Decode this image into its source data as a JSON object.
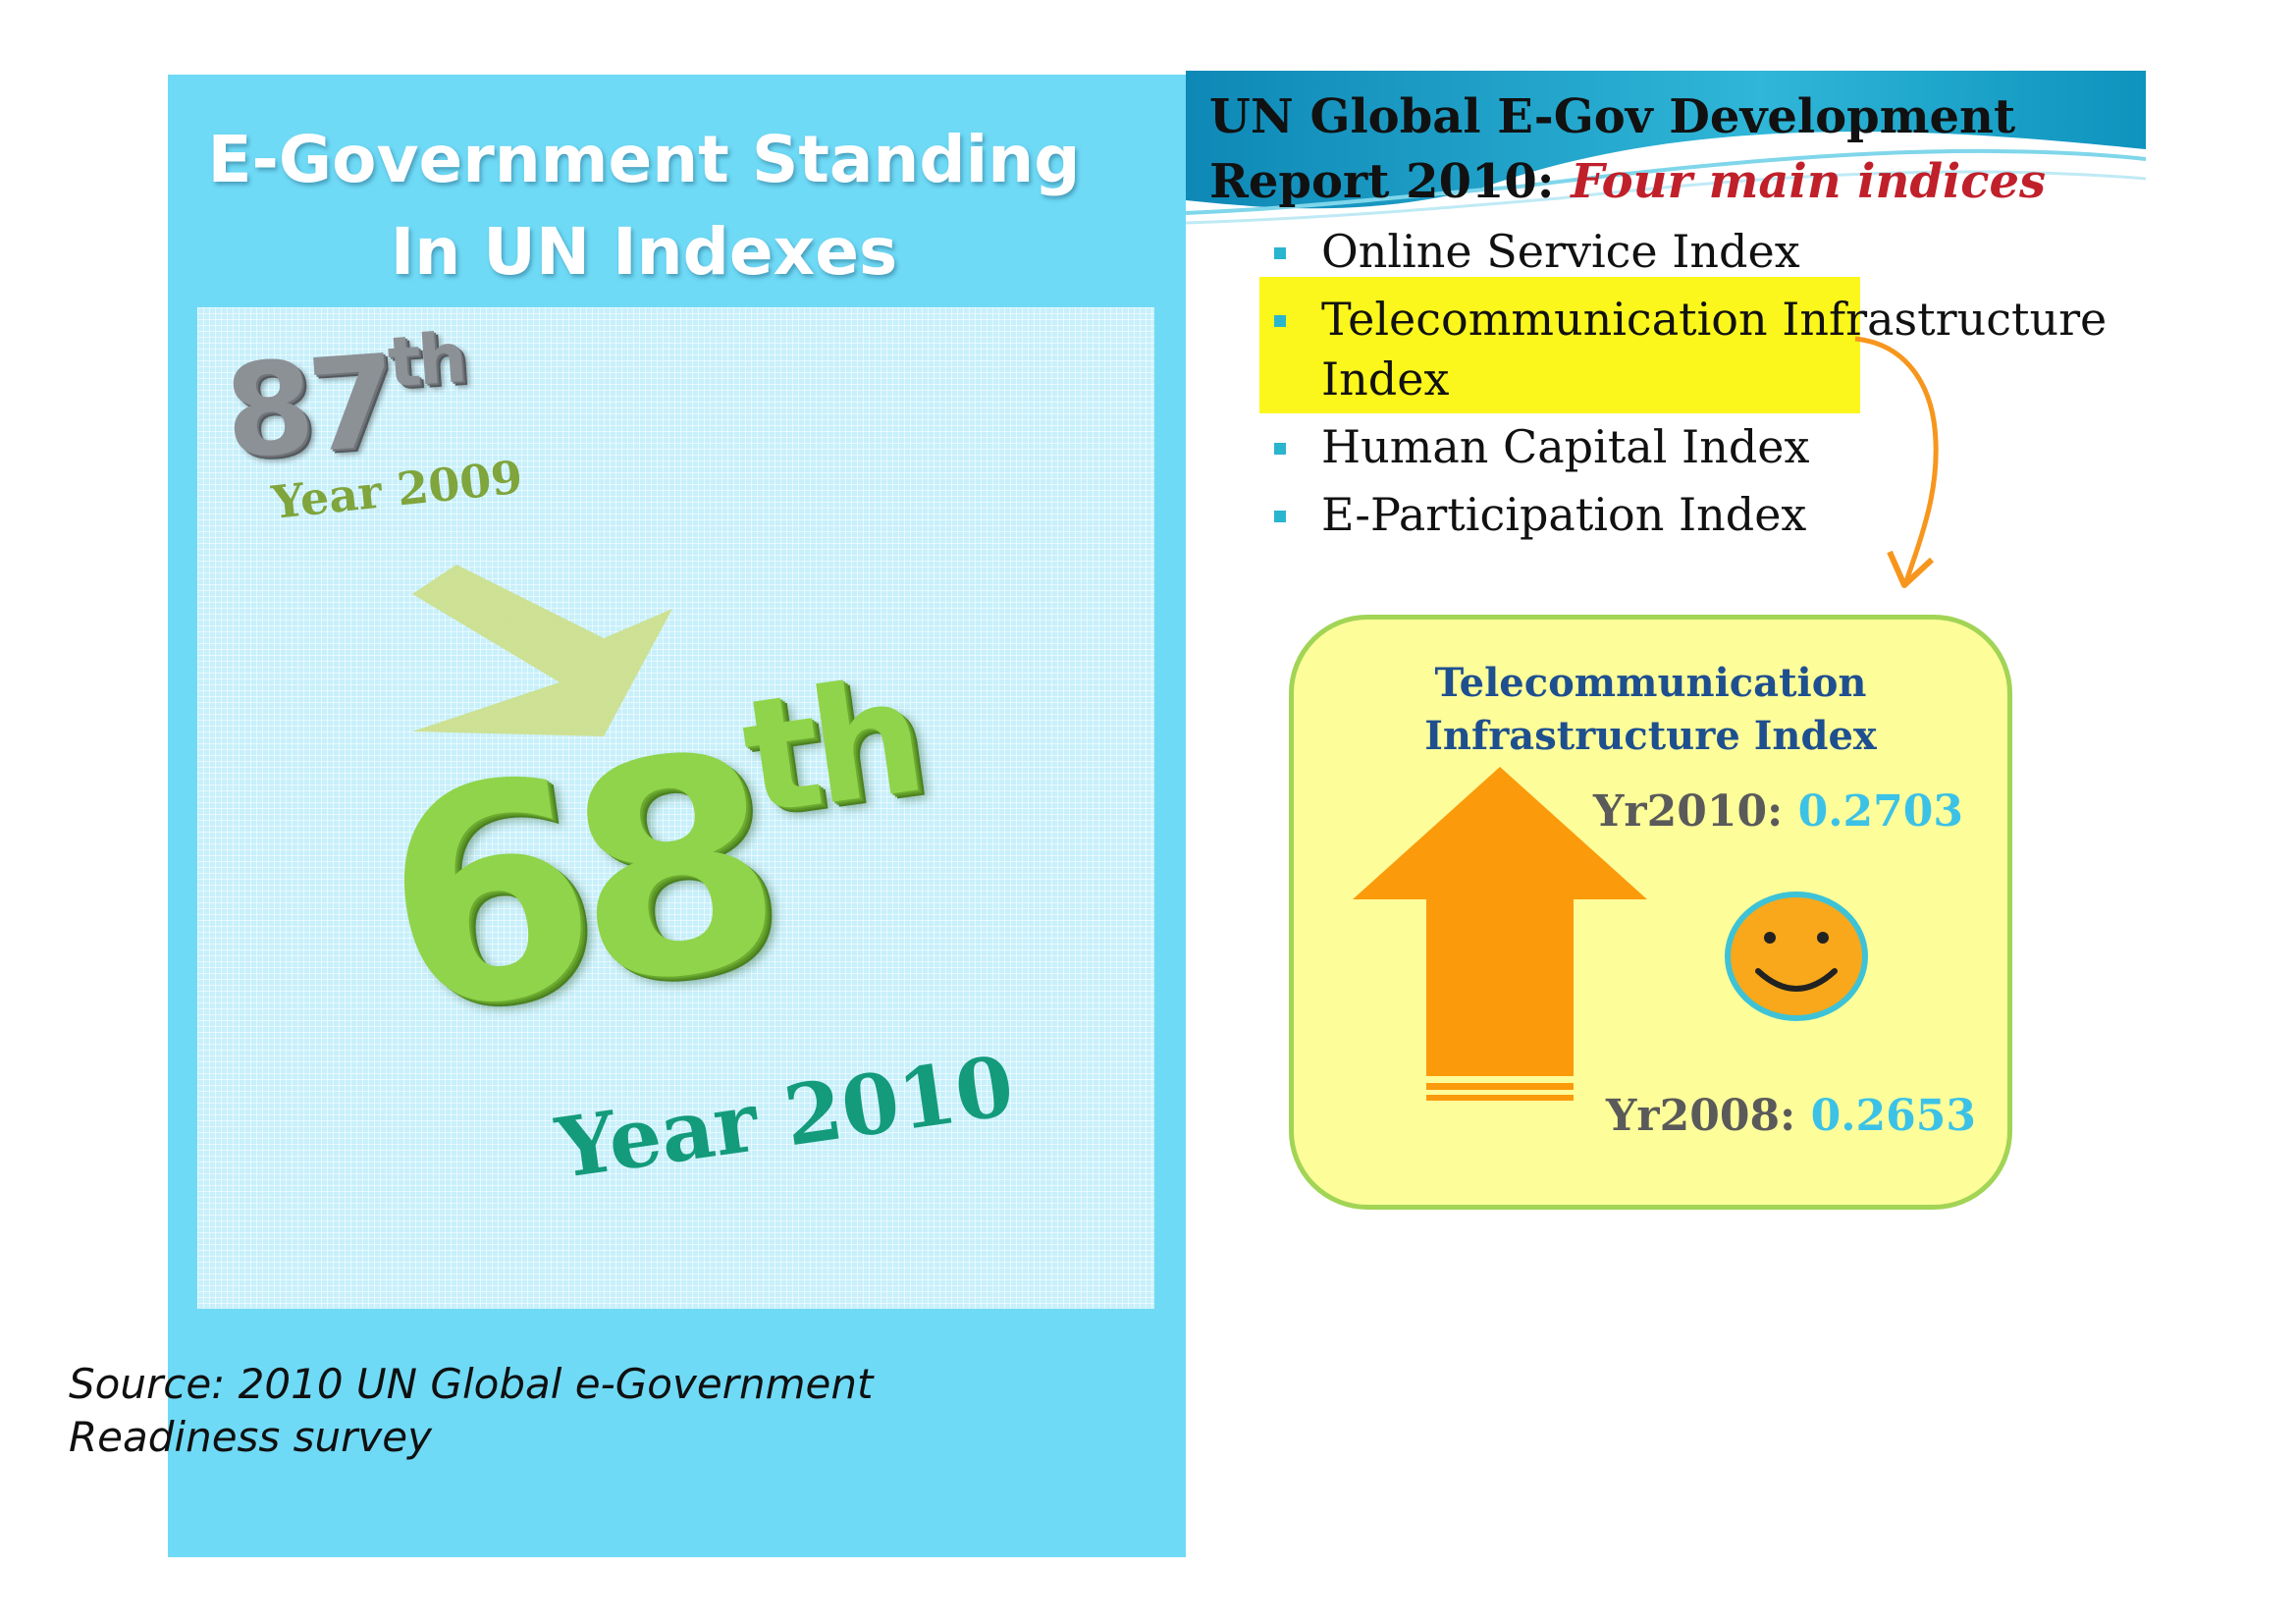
{
  "left_panel": {
    "title_line1": "E-Government Standing",
    "title_line2": "In UN Indexes",
    "rank_2009_number": "87",
    "rank_2009_suffix": "th",
    "year_2009": "Year 2009",
    "rank_2010_number": "68",
    "rank_2010_suffix": "th",
    "year_2010": "Year 2010",
    "source_line1": "Source: 2010 UN Global e-Government",
    "source_line2": "Readiness survey"
  },
  "right_panel": {
    "report_title_line1": "UN Global E-Gov Development",
    "report_title_prefix": "Report 2010: ",
    "report_title_highlight": "Four main indices",
    "indices": [
      "Online Service Index",
      "Telecommunication Infrastructure Index",
      "Human Capital Index",
      "E-Participation Index"
    ],
    "card": {
      "title_line1": "Telecommunication",
      "title_line2": "Infrastructure Index",
      "metric_2010_label": "Yr2010: ",
      "metric_2010_value": "0.2703",
      "metric_2008_label": "Yr2008: ",
      "metric_2008_value": "0.2653"
    }
  },
  "colors": {
    "left_panel_bg": "#6fdaf6",
    "accent_red": "#c0202a",
    "highlight_yellow": "#fbf71c",
    "card_bg": "#fdfd9a",
    "card_border": "#a2d455",
    "up_arrow": "#fb9a0b",
    "metric_value": "#3cc2e6",
    "card_title": "#1e4f8f"
  },
  "icons": [
    "down-right-arrow-icon",
    "curved-arrow-icon",
    "up-arrow-icon",
    "smiley-icon",
    "bullet-icon"
  ]
}
